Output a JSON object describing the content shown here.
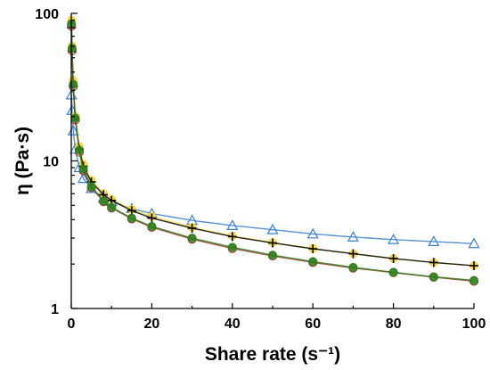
{
  "chart_data": {
    "type": "scatter",
    "xlabel": "Share rate (s⁻¹)",
    "ylabel": "η (Pa·s)",
    "xlim": [
      0,
      100
    ],
    "ylim": [
      1,
      100
    ],
    "yscale": "log",
    "x_ticks": [
      "0",
      "20",
      "40",
      "60",
      "80",
      "100"
    ],
    "y_ticks": [
      "1",
      "10",
      "100"
    ],
    "grid": false,
    "legend": "none",
    "series": [
      {
        "marker": "triangle-open",
        "color": "#3a7fc9",
        "x": [
          0.05,
          0.2,
          0.5,
          1,
          2,
          3,
          5,
          8,
          10,
          15,
          20,
          30,
          40,
          50,
          60,
          70,
          80,
          90,
          100
        ],
        "y": [
          28,
          22,
          16,
          12,
          9,
          7.6,
          6.5,
          5.6,
          5.3,
          4.75,
          4.4,
          3.95,
          3.65,
          3.42,
          3.2,
          3.05,
          2.93,
          2.84,
          2.75
        ]
      },
      {
        "marker": "circle-filled",
        "color": "#f2d24a",
        "x": [
          0.05,
          0.2,
          0.5,
          1,
          2,
          3,
          5,
          8,
          10,
          15,
          20,
          30,
          40,
          50,
          60,
          70,
          80,
          90,
          100
        ],
        "y": [
          90,
          60,
          35,
          20,
          12.5,
          9.5,
          7.4,
          6,
          5.5,
          4.7,
          4.2,
          3.55,
          3.1,
          2.8,
          2.55,
          2.35,
          2.18,
          2.05,
          1.95
        ]
      },
      {
        "marker": "plus",
        "color": "#000000",
        "x": [
          0.05,
          0.2,
          0.5,
          1,
          2,
          3,
          5,
          8,
          10,
          15,
          20,
          30,
          40,
          50,
          60,
          70,
          80,
          90,
          100
        ],
        "y": [
          80,
          55,
          32,
          19,
          12,
          9.2,
          7.2,
          5.9,
          5.4,
          4.6,
          4.1,
          3.5,
          3.07,
          2.78,
          2.54,
          2.35,
          2.18,
          2.05,
          1.95
        ]
      },
      {
        "marker": "circle-open",
        "color": "#9c3a2a",
        "x": [
          0.05,
          0.2,
          0.5,
          1,
          2,
          3,
          5,
          8,
          10,
          15,
          20,
          30,
          40,
          50,
          60,
          70,
          80,
          90,
          100
        ],
        "y": [
          82,
          56,
          32,
          19,
          11.5,
          8.6,
          6.6,
          5.3,
          4.8,
          4.05,
          3.55,
          2.95,
          2.55,
          2.27,
          2.05,
          1.88,
          1.75,
          1.63,
          1.53
        ]
      },
      {
        "marker": "circle-filled",
        "color": "#2f7d1e",
        "x": [
          0.05,
          0.2,
          0.5,
          1,
          2,
          3,
          5,
          8,
          10,
          15,
          20,
          30,
          40,
          50,
          60,
          70,
          80,
          90,
          100
        ],
        "y": [
          85,
          58,
          33,
          19.5,
          11.8,
          8.8,
          6.7,
          5.35,
          4.85,
          4.1,
          3.6,
          3.0,
          2.6,
          2.3,
          2.08,
          1.9,
          1.76,
          1.64,
          1.55
        ]
      }
    ]
  }
}
